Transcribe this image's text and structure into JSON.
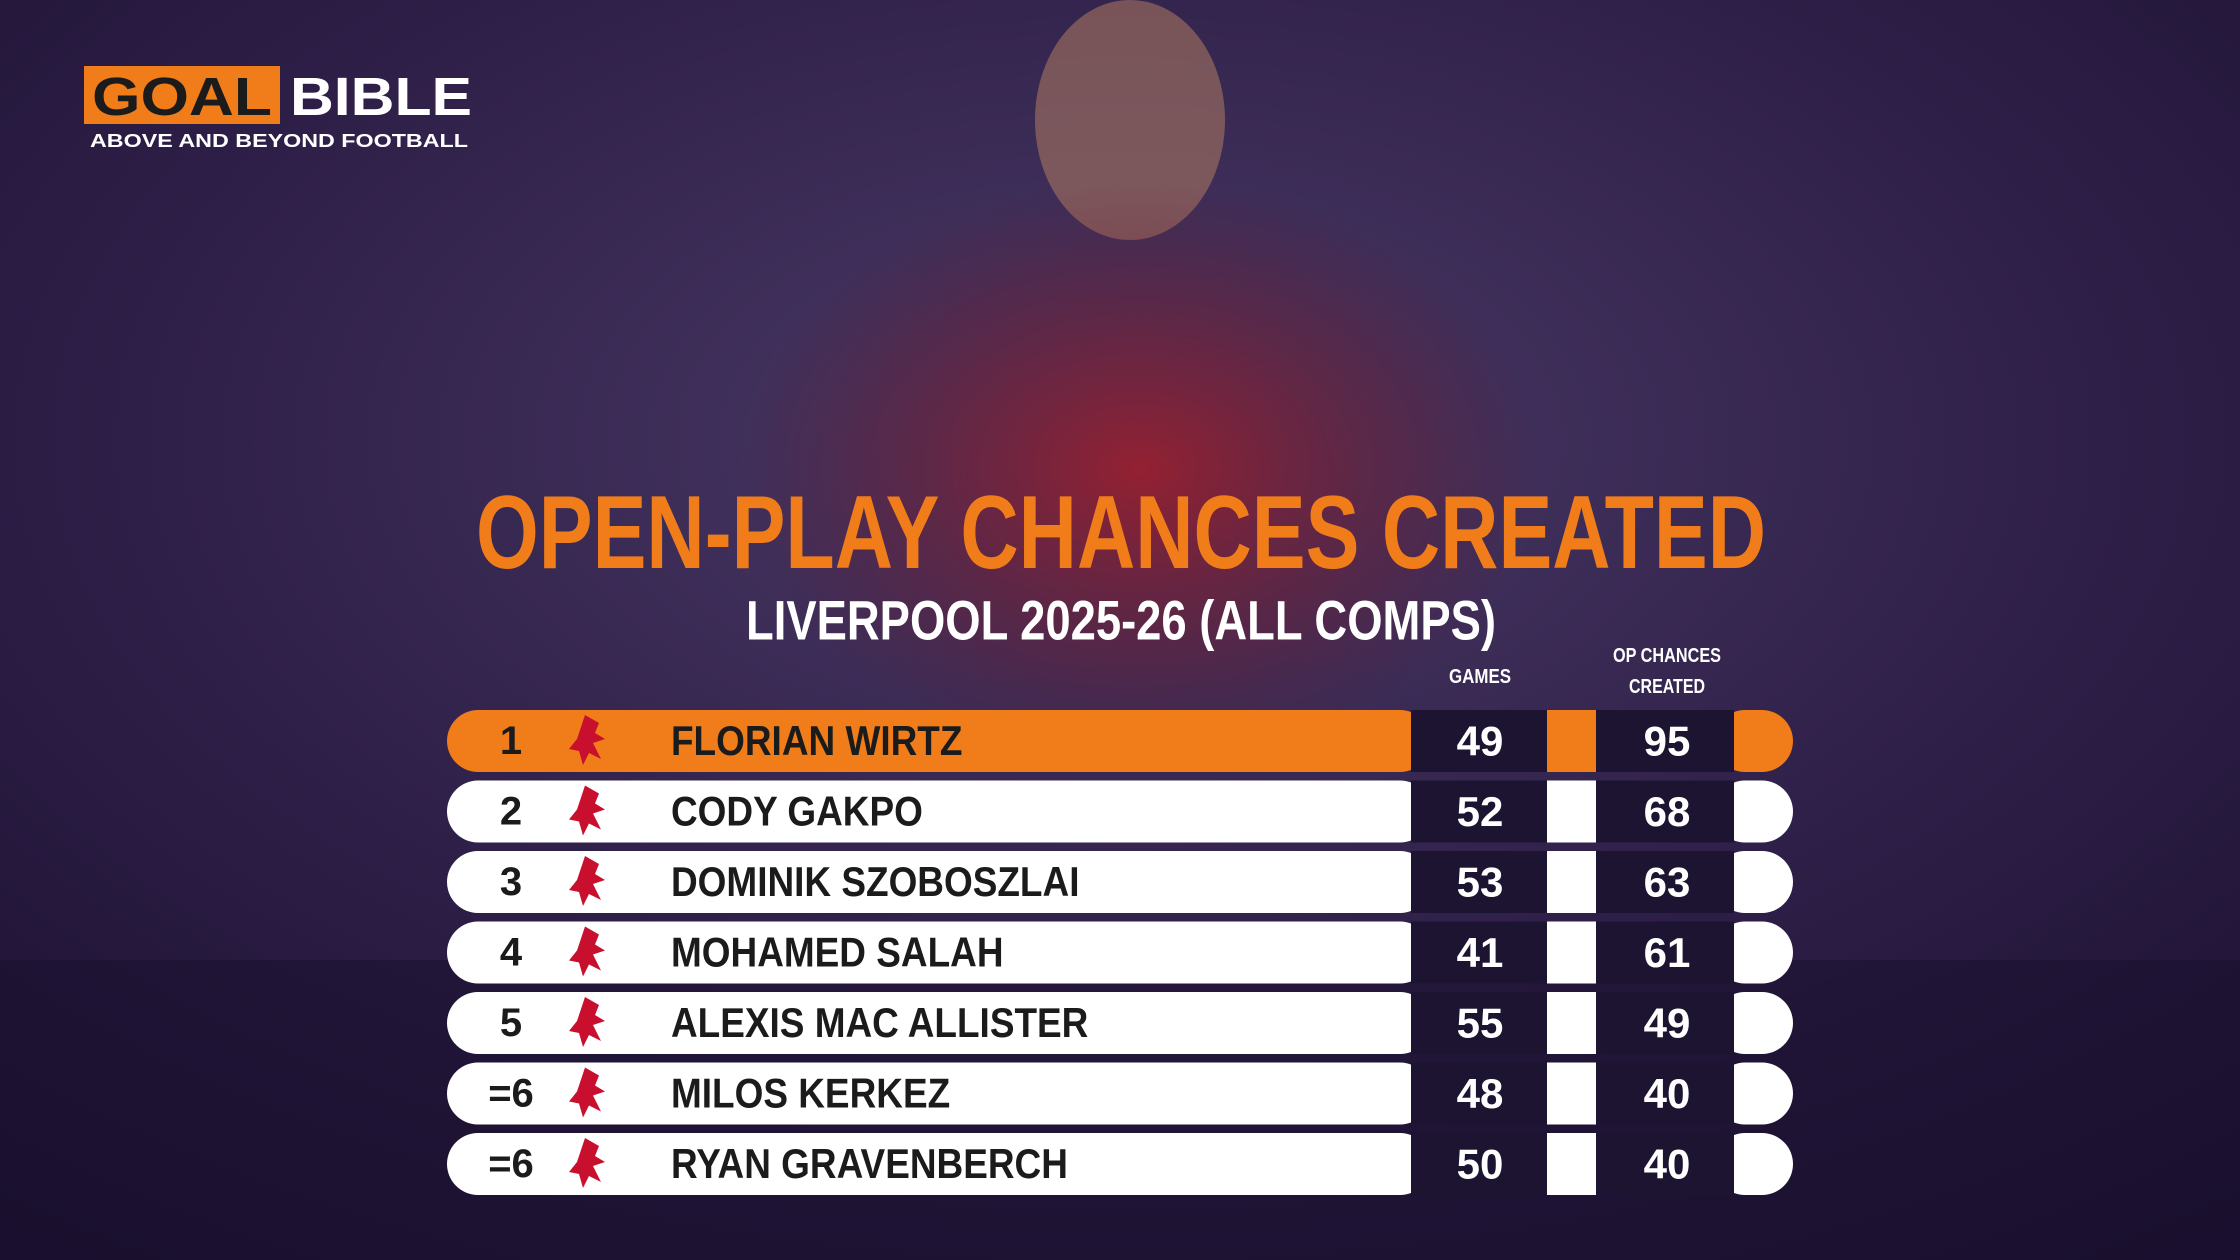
{
  "brand": {
    "goal": "GOAL",
    "bible": "BIBLE",
    "tagline": "ABOVE AND BEYOND FOOTBALL"
  },
  "title": "OPEN-PLAY CHANCES CREATED",
  "subtitle": "LIVERPOOL 2025-26 (ALL COMPS)",
  "table": {
    "columns": {
      "games": "GAMES",
      "chances": [
        "OP CHANCES",
        "CREATED"
      ]
    },
    "rows": [
      {
        "rank": "1",
        "name": "FLORIAN WIRTZ",
        "games": 49,
        "chances": 95
      },
      {
        "rank": "2",
        "name": "CODY GAKPO",
        "games": 52,
        "chances": 68
      },
      {
        "rank": "3",
        "name": "DOMINIK SZOBOSZLAI",
        "games": 53,
        "chances": 63
      },
      {
        "rank": "4",
        "name": "MOHAMED SALAH",
        "games": 41,
        "chances": 61
      },
      {
        "rank": "5",
        "name": "ALEXIS MAC ALLISTER",
        "games": 55,
        "chances": 49
      },
      {
        "rank": "=6",
        "name": "MILOS KERKEZ",
        "games": 48,
        "chances": 40
      },
      {
        "rank": "=6",
        "name": "RYAN GRAVENBERCH",
        "games": 50,
        "chances": 40
      }
    ]
  }
}
